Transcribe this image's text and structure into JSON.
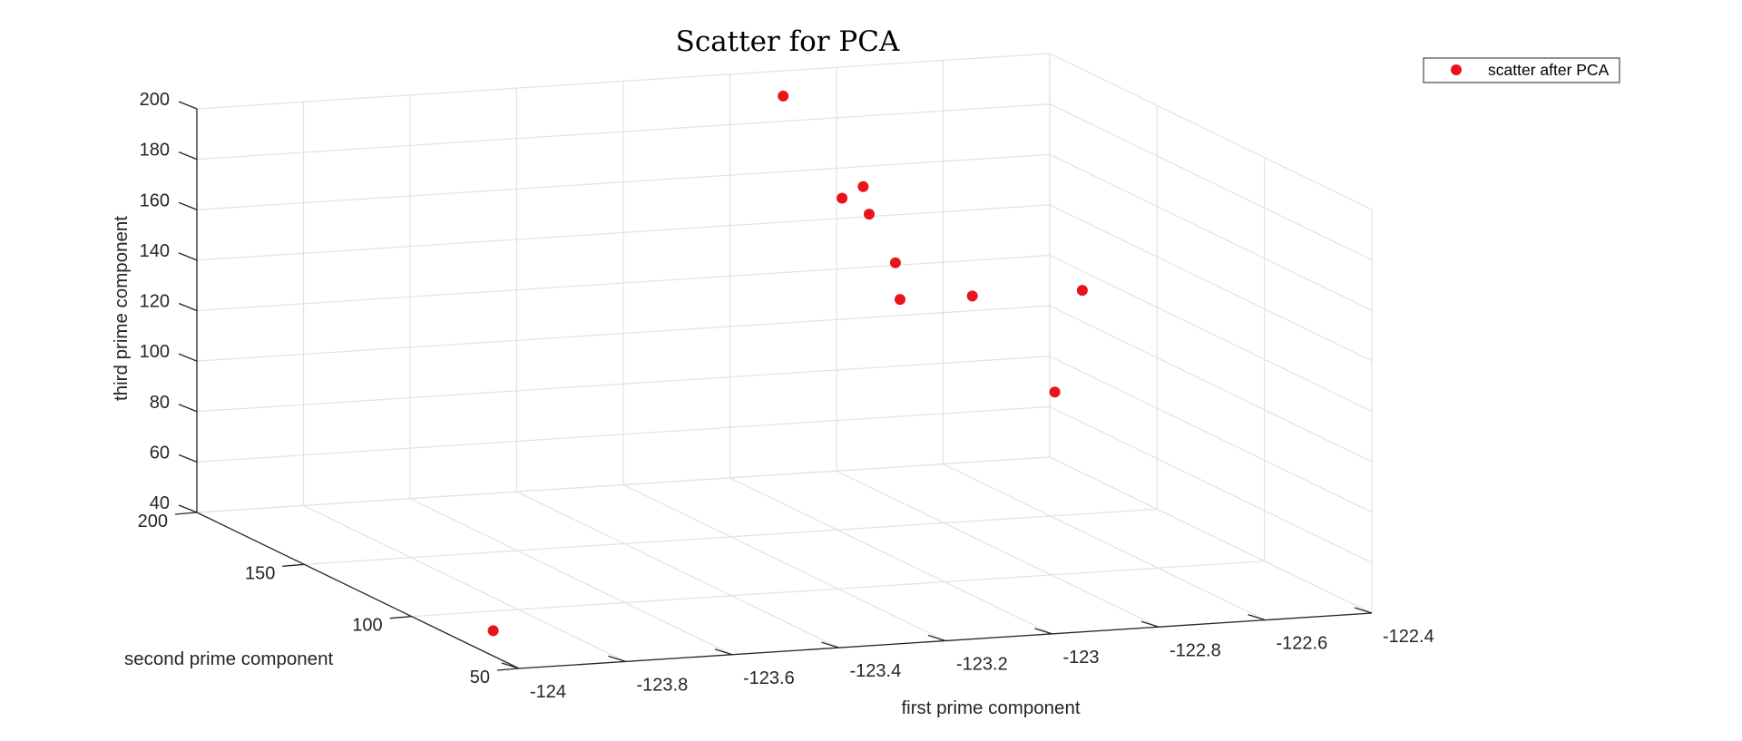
{
  "chart_data": {
    "type": "scatter",
    "title": "Scatter for PCA",
    "xlabel": "first prime component",
    "ylabel": "second prime component",
    "zlabel": "third prime component",
    "xlim": [
      -124,
      -122.4
    ],
    "ylim": [
      50,
      200
    ],
    "zlim": [
      40,
      200
    ],
    "xticks": [
      -124,
      -123.8,
      -123.6,
      -123.4,
      -123.2,
      -123,
      -122.8,
      -122.6,
      -122.4
    ],
    "xtick_labels": [
      "-124",
      "-123.8",
      "-123.6",
      "-123.4",
      "-123.2",
      "-123",
      "-122.8",
      "-122.6",
      "-122.4"
    ],
    "yticks": [
      50,
      100,
      150,
      200
    ],
    "ytick_labels": [
      "50",
      "100",
      "150",
      "200"
    ],
    "zticks": [
      40,
      60,
      80,
      100,
      120,
      140,
      160,
      180,
      200
    ],
    "ztick_labels": [
      "40",
      "60",
      "80",
      "100",
      "120",
      "140",
      "160",
      "180",
      "200"
    ],
    "grid": true,
    "legend": {
      "position": "top-right",
      "entries": [
        "scatter after PCA"
      ]
    },
    "series": [
      {
        "name": "scatter after PCA",
        "color": "#e8141c",
        "points": [
          {
            "x": -124.0,
            "y": 62,
            "z": 50
          },
          {
            "x": -122.9,
            "y": 200,
            "z": 190
          },
          {
            "x": -122.92,
            "y": 155,
            "z": 162
          },
          {
            "x": -122.85,
            "y": 185,
            "z": 155
          },
          {
            "x": -122.75,
            "y": 200,
            "z": 152
          },
          {
            "x": -122.85,
            "y": 158,
            "z": 126
          },
          {
            "x": -122.75,
            "y": 185,
            "z": 128
          },
          {
            "x": -122.65,
            "y": 174,
            "z": 118
          },
          {
            "x": -122.5,
            "y": 160,
            "z": 124
          },
          {
            "x": -122.6,
            "y": 148,
            "z": 90
          }
        ]
      }
    ]
  }
}
